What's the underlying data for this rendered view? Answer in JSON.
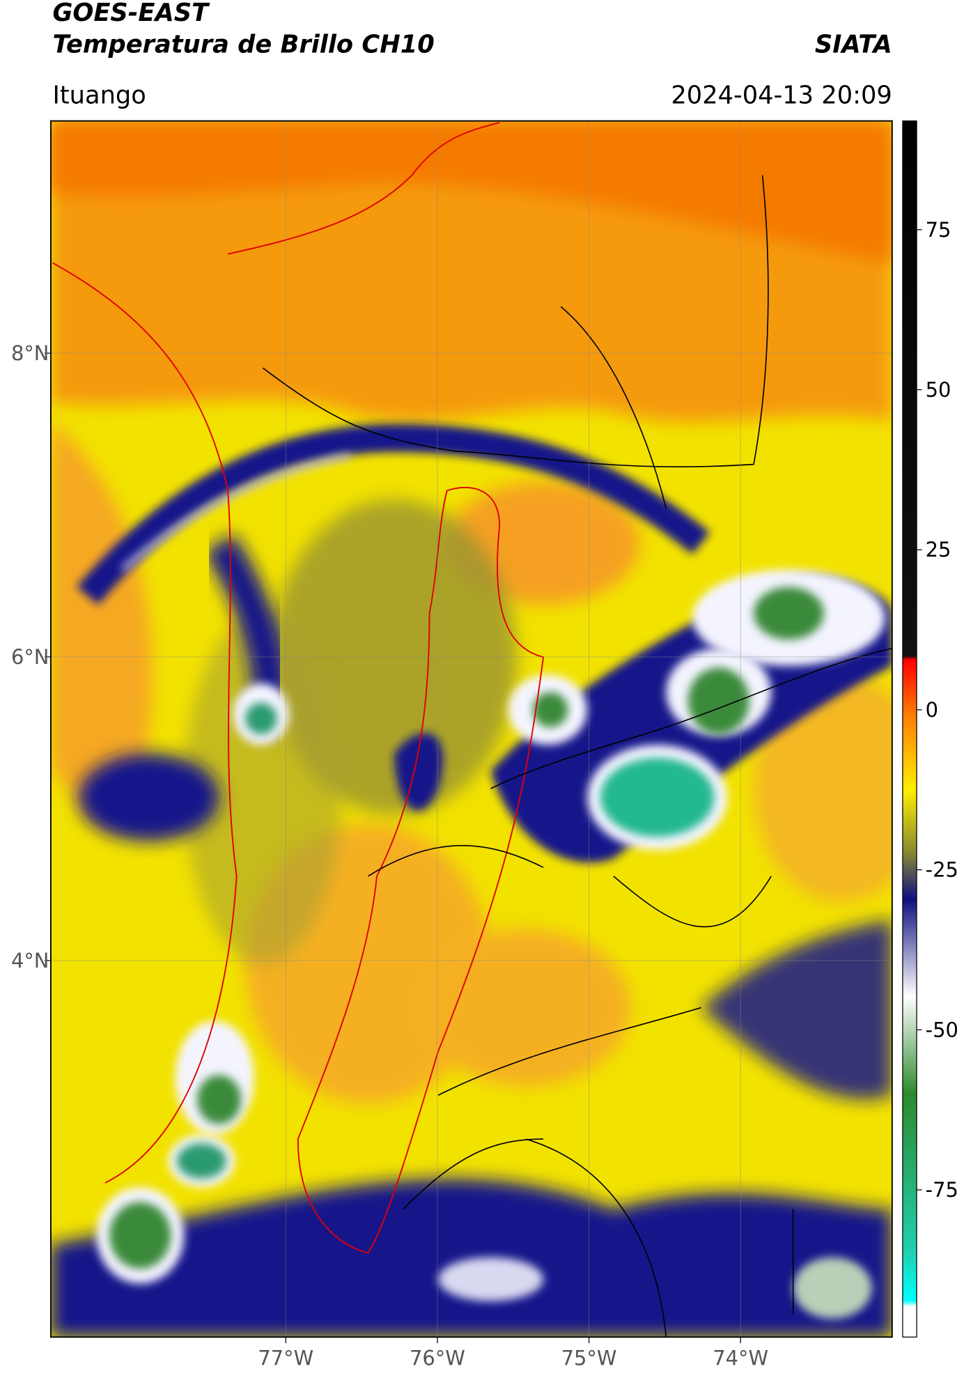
{
  "header": {
    "title": "GOES-EAST",
    "subtitle": "Temperatura de Brillo CH10",
    "source": "SIATA",
    "location": "Ituango",
    "datetime": "2024-04-13 20:09"
  },
  "map": {
    "lonlim": [
      -78.55,
      -73.0
    ],
    "latlim": [
      1.52,
      9.53
    ],
    "lonticks": [
      {
        "value": -77,
        "label": "77°W"
      },
      {
        "value": -76,
        "label": "76°W"
      },
      {
        "value": -75,
        "label": "75°W"
      },
      {
        "value": -74,
        "label": "74°W"
      }
    ],
    "latticks": [
      {
        "value": 8,
        "label": "8°N"
      },
      {
        "value": 6,
        "label": "6°N"
      },
      {
        "value": 4,
        "label": "4°N"
      }
    ],
    "grid": true
  },
  "colorbar": {
    "lim": [
      -98,
      92
    ],
    "ticks": [
      75,
      50,
      25,
      0,
      -25,
      -50,
      -75
    ]
  }
}
